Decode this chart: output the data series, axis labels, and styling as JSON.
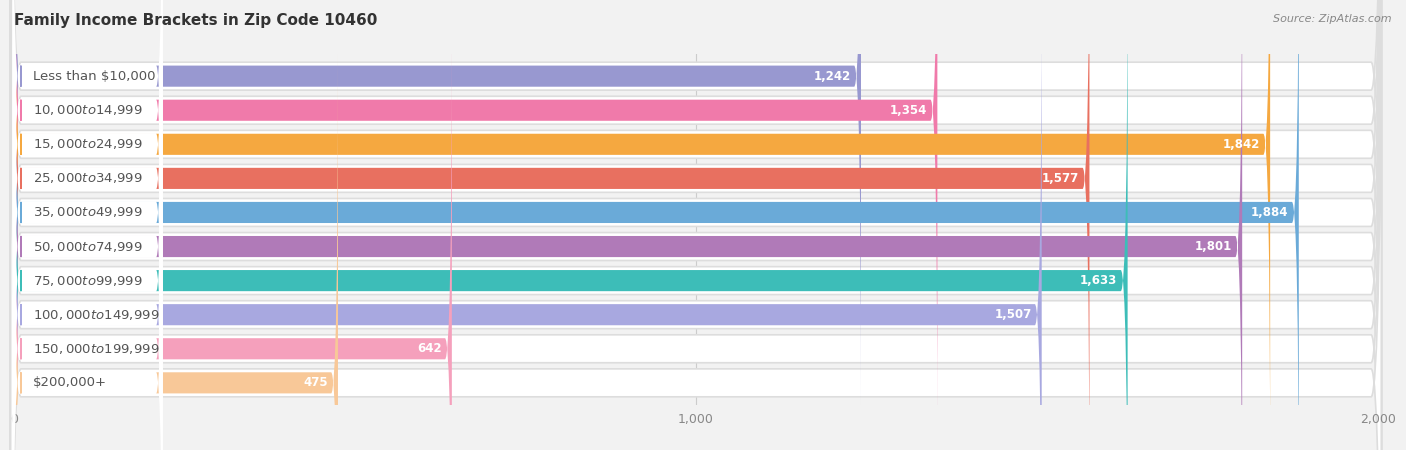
{
  "title": "Family Income Brackets in Zip Code 10460",
  "source": "Source: ZipAtlas.com",
  "categories": [
    "Less than $10,000",
    "$10,000 to $14,999",
    "$15,000 to $24,999",
    "$25,000 to $34,999",
    "$35,000 to $49,999",
    "$50,000 to $74,999",
    "$75,000 to $99,999",
    "$100,000 to $149,999",
    "$150,000 to $199,999",
    "$200,000+"
  ],
  "values": [
    1242,
    1354,
    1842,
    1577,
    1884,
    1801,
    1633,
    1507,
    642,
    475
  ],
  "bar_colors": [
    "#9898d0",
    "#f07aaa",
    "#f5a840",
    "#e87060",
    "#6aaad8",
    "#b07ab8",
    "#3dbdb8",
    "#a8a8e0",
    "#f5a0bc",
    "#f8c898"
  ],
  "background_color": "#f2f2f2",
  "row_bg_color": "#ffffff",
  "row_border_color": "#dddddd",
  "label_color": "#555555",
  "value_color_inside": "#ffffff",
  "value_color_outside": "#888888",
  "xmin": 0,
  "xmax": 2000,
  "xticks": [
    0,
    1000,
    2000
  ],
  "title_fontsize": 11,
  "source_fontsize": 8,
  "label_fontsize": 9.5,
  "value_fontsize": 8.5,
  "tick_fontsize": 9
}
